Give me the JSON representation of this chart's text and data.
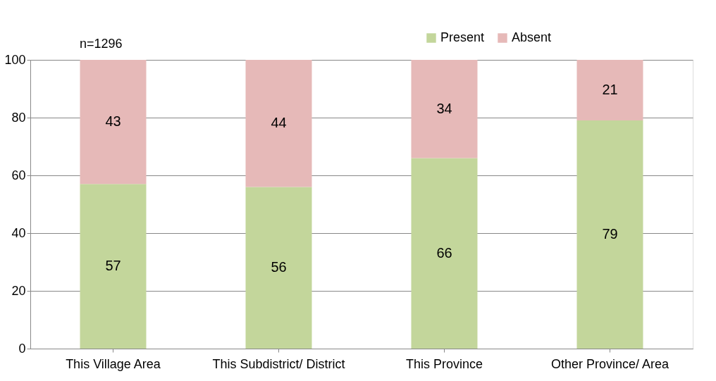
{
  "chart_data": {
    "type": "bar",
    "stacked": true,
    "categories": [
      "This Village Area",
      "This Subdistrict/ District",
      "This Province",
      "Other Province/ Area"
    ],
    "series": [
      {
        "name": "Present",
        "color": "#c3d69b",
        "values": [
          57,
          56,
          66,
          79
        ]
      },
      {
        "name": "Absent",
        "color": "#e6b9b8",
        "values": [
          43,
          44,
          34,
          21
        ]
      }
    ],
    "ylim": [
      0,
      100
    ],
    "yticks": [
      0,
      20,
      40,
      60,
      80,
      100
    ],
    "grid": "y",
    "legend": "top right",
    "data_labels": true,
    "annotations": [
      "n=1296"
    ]
  }
}
